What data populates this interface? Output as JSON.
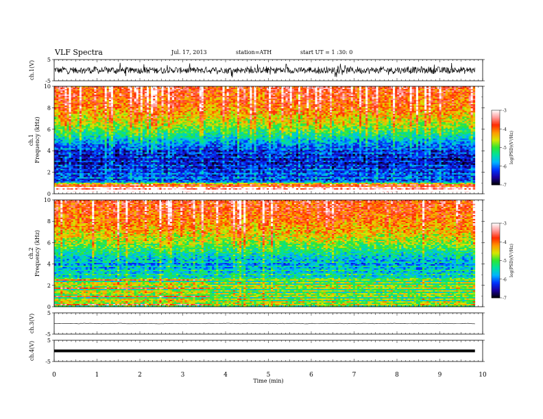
{
  "header": {
    "title": "VLF  Spectra",
    "date": "Jul. 17, 2013",
    "station": "station=ATH",
    "start": "start  UT  =   1 :30: 0"
  },
  "colors": {
    "colormap": [
      "#000000",
      "#1a00a0",
      "#0033ff",
      "#00b4ff",
      "#00e0a0",
      "#2ee632",
      "#d8e600",
      "#ff9800",
      "#ff2a00",
      "#ff9999",
      "#ffffff"
    ]
  },
  "chart_data": [
    {
      "type": "line",
      "name": "ch1-waveform",
      "ylabel": "ch.1(V)",
      "ylim": [
        -5,
        5
      ],
      "yticks": [
        "5",
        "-5"
      ],
      "description_note": "",
      "amplitude_typical": 1.5,
      "amplitude_max": 3.5
    },
    {
      "type": "heatmap",
      "name": "ch1-spectrogram",
      "ylabel_channel": "ch.1",
      "ylabel": "Frequency  (kHz)",
      "ylim": [
        0,
        10
      ],
      "yticks": [
        "0",
        "2",
        "4",
        "6",
        "8",
        "10"
      ],
      "colorbar": {
        "label": "log(PSD)(V²/Hz)",
        "range": [
          -7,
          -3
        ],
        "ticks": [
          "-3",
          "-4",
          "-5",
          "-6",
          "-7"
        ]
      },
      "frequency_profile_khz": [
        0,
        1,
        2,
        3,
        4,
        5,
        6,
        7,
        8,
        9,
        10
      ],
      "mean_logpsd": [
        -3.6,
        -6.2,
        -6.3,
        -6.6,
        -6.4,
        -5.7,
        -5.0,
        -4.5,
        -4.1,
        -3.9,
        -3.8
      ]
    },
    {
      "type": "heatmap",
      "name": "ch2-spectrogram",
      "ylabel_channel": "ch.2",
      "ylabel": "Frequency  (kHz)",
      "ylim": [
        0,
        10
      ],
      "yticks": [
        "0",
        "2",
        "4",
        "6",
        "8",
        "10"
      ],
      "colorbar": {
        "label": "log(PSD)(V²/Hz)",
        "range": [
          -7,
          -3
        ],
        "ticks": [
          "-3",
          "-4",
          "-5",
          "-6",
          "-7"
        ]
      },
      "frequency_profile_khz": [
        0,
        1,
        2,
        3,
        4,
        5,
        6,
        7,
        8,
        9,
        10
      ],
      "mean_logpsd": [
        -5.2,
        -5.4,
        -5.3,
        -5.6,
        -5.9,
        -5.4,
        -4.8,
        -4.4,
        -4.1,
        -3.9,
        -3.8
      ]
    },
    {
      "type": "line",
      "name": "ch3-waveform",
      "ylabel": "ch.3(V)",
      "ylim": [
        -5,
        5
      ],
      "yticks": [
        "5",
        "-5"
      ],
      "level": 0
    },
    {
      "type": "line",
      "name": "ch4-waveform",
      "ylabel": "ch.4(V)",
      "ylim": [
        -5,
        5
      ],
      "yticks": [
        "5",
        "-5"
      ],
      "level": 0
    }
  ],
  "xaxis": {
    "label": "Time  (min)",
    "xlim": [
      0,
      10
    ],
    "ticks": [
      "0",
      "1",
      "2",
      "3",
      "4",
      "5",
      "6",
      "7",
      "8",
      "9",
      "10"
    ],
    "data_end": 9.82
  }
}
